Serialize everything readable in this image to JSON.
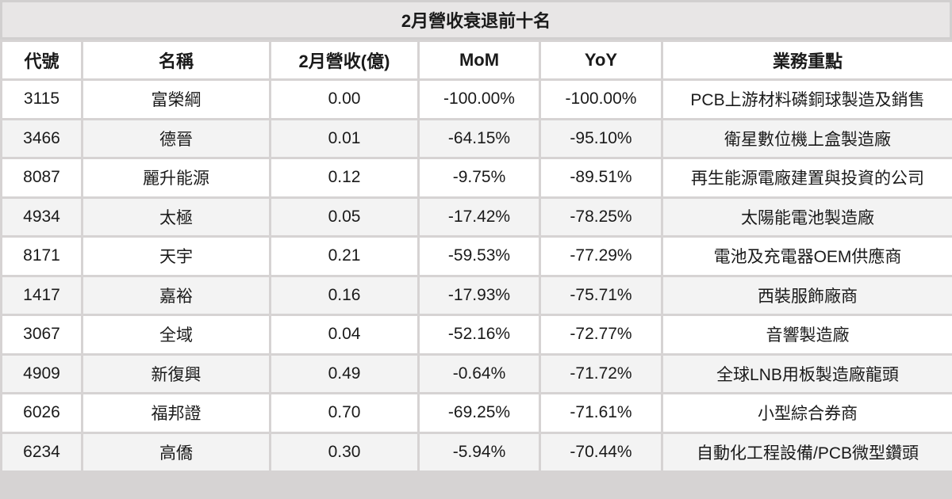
{
  "title": "2月營收衰退前十名",
  "headers": {
    "code": "代號",
    "name": "名稱",
    "revenue": "2月營收(億)",
    "mom": "MoM",
    "yoy": "YoY",
    "business": "業務重點"
  },
  "rows": [
    {
      "code": "3115",
      "name": "富榮綱",
      "revenue": "0.00",
      "mom": "-100.00%",
      "yoy": "-100.00%",
      "business": "PCB上游材料磷銅球製造及銷售"
    },
    {
      "code": "3466",
      "name": "德晉",
      "revenue": "0.01",
      "mom": "-64.15%",
      "yoy": "-95.10%",
      "business": "衛星數位機上盒製造廠"
    },
    {
      "code": "8087",
      "name": "麗升能源",
      "revenue": "0.12",
      "mom": "-9.75%",
      "yoy": "-89.51%",
      "business": "再生能源電廠建置與投資的公司"
    },
    {
      "code": "4934",
      "name": "太極",
      "revenue": "0.05",
      "mom": "-17.42%",
      "yoy": "-78.25%",
      "business": "太陽能電池製造廠"
    },
    {
      "code": "8171",
      "name": "天宇",
      "revenue": "0.21",
      "mom": "-59.53%",
      "yoy": "-77.29%",
      "business": "電池及充電器OEM供應商"
    },
    {
      "code": "1417",
      "name": "嘉裕",
      "revenue": "0.16",
      "mom": "-17.93%",
      "yoy": "-75.71%",
      "business": "西裝服飾廠商"
    },
    {
      "code": "3067",
      "name": "全域",
      "revenue": "0.04",
      "mom": "-52.16%",
      "yoy": "-72.77%",
      "business": "音響製造廠"
    },
    {
      "code": "4909",
      "name": "新復興",
      "revenue": "0.49",
      "mom": "-0.64%",
      "yoy": "-71.72%",
      "business": "全球LNB用板製造廠龍頭"
    },
    {
      "code": "6026",
      "name": "福邦證",
      "revenue": "0.70",
      "mom": "-69.25%",
      "yoy": "-71.61%",
      "business": "小型綜合券商"
    },
    {
      "code": "6234",
      "name": "高僑",
      "revenue": "0.30",
      "mom": "-5.94%",
      "yoy": "-70.44%",
      "business": "自動化工程設備/PCB微型鑽頭"
    }
  ],
  "colors": {
    "title_background": "#e8e6e6",
    "grid_lines": "#d6d3d3",
    "row_alternate": "#f3f3f3",
    "text": "#1a1a1a"
  }
}
